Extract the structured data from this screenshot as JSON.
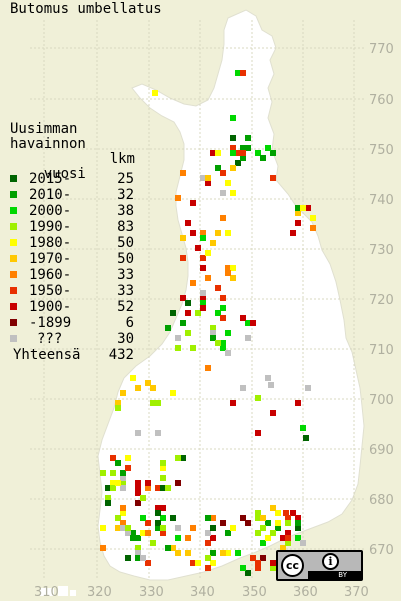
{
  "title": "Butomus umbellatus",
  "legend_heading": [
    "Uusimman",
    "havainnon",
    "vuosi"
  ],
  "legend_count_header": "lkm",
  "legend": [
    {
      "label": "2015-",
      "count": "25",
      "color": "#006400"
    },
    {
      "label": "2010-",
      "count": "32",
      "color": "#00a000"
    },
    {
      "label": "2000-",
      "count": "38",
      "color": "#00d800"
    },
    {
      "label": "1990-",
      "count": "83",
      "color": "#a0f000"
    },
    {
      "label": "1980-",
      "count": "50",
      "color": "#ffff00"
    },
    {
      "label": "1970-",
      "count": "50",
      "color": "#ffc800"
    },
    {
      "label": "1960-",
      "count": "33",
      "color": "#ff8000"
    },
    {
      "label": "1950-",
      "count": "33",
      "color": "#e83000"
    },
    {
      "label": "1900-",
      "count": "52",
      "color": "#c80000"
    },
    {
      "label": "-1899",
      "count": "6",
      "color": "#800000"
    },
    {
      "label": "???",
      "count": "30",
      "color": "#c0c0c0"
    }
  ],
  "total_label": "Yhteensä",
  "total_count": "432",
  "map_colors": {
    "land": "#ffffff",
    "sea": "#f0f0d8",
    "grid": "#d8d8c0",
    "borders": "#d0d0d0"
  },
  "axis_x_labels": [
    "310",
    "320",
    "330",
    "340",
    "350",
    "360",
    "370"
  ],
  "axis_y_labels": [
    "770",
    "760",
    "750",
    "740",
    "730",
    "720",
    "710",
    "700",
    "690",
    "680",
    "670"
  ],
  "license_badge": {
    "icon": "cc-icon",
    "by_icon": "attribution-icon",
    "by_text": "BY"
  }
}
